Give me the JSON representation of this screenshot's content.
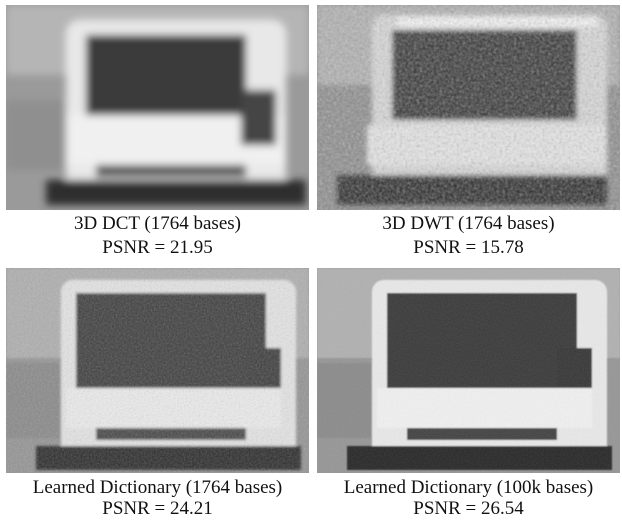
{
  "panels": [
    {
      "method": "3D DCT (1764 bases)",
      "psnr": "PSNR = 21.95",
      "style": "blurry"
    },
    {
      "method": "3D DWT (1764 bases)",
      "psnr": "PSNR = 15.78",
      "style": "noisy"
    },
    {
      "method": "Learned Dictionary (1764 bases)",
      "psnr": "PSNR = 24.21",
      "style": "speckled"
    },
    {
      "method": "Learned Dictionary (100k bases)",
      "psnr": "PSNR = 26.54",
      "style": "sharp"
    }
  ]
}
